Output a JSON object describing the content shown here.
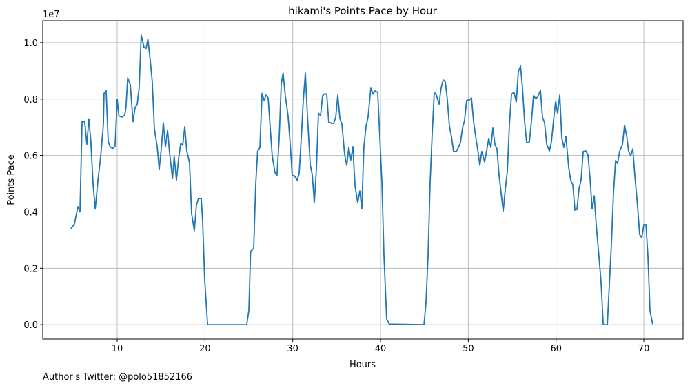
{
  "chart_data": {
    "type": "line",
    "title": "hikami's Points Pace by Hour",
    "xlabel": "Hours",
    "ylabel": "Points Pace",
    "y_offset_label": "1e7",
    "footnote": "Author's Twitter: @polo51852166",
    "x": [
      4.73,
      5.13,
      5.52,
      5.76,
      6.0,
      6.3,
      6.54,
      6.78,
      7.0,
      7.25,
      7.5,
      7.8,
      8.1,
      8.43,
      8.5,
      8.74,
      8.98,
      9.2,
      9.5,
      9.76,
      10.0,
      10.2,
      10.55,
      10.86,
      11.0,
      11.2,
      11.5,
      11.8,
      12.04,
      12.28,
      12.5,
      12.74,
      13.06,
      13.3,
      13.5,
      13.77,
      14.0,
      14.24,
      14.55,
      14.79,
      15.0,
      15.26,
      15.5,
      15.74,
      15.97,
      16.3,
      16.5,
      16.75,
      17.0,
      17.24,
      17.47,
      17.7,
      17.93,
      18.24,
      18.48,
      18.79,
      19.03,
      19.26,
      19.58,
      19.74,
      19.97,
      20.3,
      24.76,
      25.0,
      25.2,
      25.55,
      25.78,
      26.0,
      26.26,
      26.5,
      26.73,
      26.96,
      27.2,
      27.43,
      27.66,
      27.97,
      28.2,
      28.45,
      28.69,
      28.9,
      29.16,
      29.47,
      29.7,
      29.94,
      30.18,
      30.5,
      30.73,
      30.96,
      31.2,
      31.44,
      31.67,
      32.0,
      32.22,
      32.46,
      32.7,
      32.93,
      33.17,
      33.4,
      33.64,
      33.87,
      34.1,
      34.42,
      34.66,
      34.9,
      35.13,
      35.37,
      35.6,
      35.91,
      36.15,
      36.38,
      36.62,
      36.85,
      37.1,
      37.4,
      37.64,
      37.87,
      38.1,
      38.35,
      38.58,
      38.9,
      39.14,
      39.37,
      39.68,
      39.92,
      40.16,
      40.39,
      40.7,
      41.0,
      44.95,
      45.18,
      45.42,
      45.65,
      45.89,
      46.12,
      46.36,
      46.67,
      46.9,
      47.14,
      47.38,
      47.6,
      47.85,
      48.08,
      48.32,
      48.63,
      48.87,
      49.1,
      49.34,
      49.57,
      49.81,
      50.13,
      50.36,
      50.6,
      50.84,
      51.07,
      51.31,
      51.54,
      51.86,
      52.1,
      52.33,
      52.57,
      52.8,
      53.04,
      53.27,
      53.5,
      53.98,
      54.21,
      54.45,
      54.68,
      54.92,
      55.2,
      55.47,
      55.7,
      55.95,
      56.18,
      56.41,
      56.65,
      56.96,
      57.2,
      57.43,
      57.67,
      57.9,
      58.22,
      58.45,
      58.69,
      58.93,
      59.24,
      59.47,
      59.71,
      59.95,
      60.18,
      60.42,
      60.65,
      60.89,
      61.12,
      61.44,
      61.67,
      61.91,
      62.15,
      62.38,
      62.62,
      62.85,
      63.09,
      63.4,
      63.64,
      63.87,
      64.11,
      64.35,
      64.58,
      64.82,
      65.13,
      65.37,
      65.84,
      66.07,
      66.3,
      66.54,
      66.78,
      67.0,
      67.25,
      67.56,
      67.8,
      68.03,
      68.27,
      68.5,
      68.74,
      68.97,
      69.29,
      69.52,
      69.76,
      70.0,
      70.24,
      70.47,
      70.7,
      71.0
    ],
    "series": [
      {
        "name": "Points Pace",
        "color": "#1f77b4",
        "values": [
          0.34,
          0.357,
          0.418,
          0.4,
          0.72,
          0.72,
          0.64,
          0.73,
          0.65,
          0.5,
          0.41,
          0.51,
          0.59,
          0.71,
          0.82,
          0.83,
          0.65,
          0.63,
          0.625,
          0.633,
          0.8,
          0.74,
          0.736,
          0.743,
          0.77,
          0.875,
          0.85,
          0.72,
          0.77,
          0.78,
          0.84,
          1.027,
          0.983,
          0.98,
          1.012,
          0.936,
          0.86,
          0.694,
          0.633,
          0.552,
          0.616,
          0.716,
          0.63,
          0.69,
          0.609,
          0.518,
          0.597,
          0.513,
          0.589,
          0.643,
          0.636,
          0.702,
          0.616,
          0.575,
          0.394,
          0.333,
          0.425,
          0.447,
          0.447,
          0.364,
          0.159,
          0,
          0,
          0.05,
          0.26,
          0.27,
          0.496,
          0.616,
          0.628,
          0.82,
          0.795,
          0.814,
          0.804,
          0.7,
          0.6,
          0.54,
          0.528,
          0.658,
          0.853,
          0.892,
          0.81,
          0.74,
          0.645,
          0.53,
          0.528,
          0.513,
          0.535,
          0.655,
          0.795,
          0.892,
          0.743,
          0.565,
          0.533,
          0.433,
          0.555,
          0.75,
          0.741,
          0.812,
          0.819,
          0.817,
          0.719,
          0.714,
          0.714,
          0.736,
          0.814,
          0.731,
          0.711,
          0.604,
          0.565,
          0.628,
          0.584,
          0.631,
          0.491,
          0.433,
          0.474,
          0.411,
          0.628,
          0.704,
          0.736,
          0.841,
          0.817,
          0.829,
          0.824,
          0.665,
          0.501,
          0.247,
          0.02,
          0.002,
          0,
          0.078,
          0.247,
          0.504,
          0.68,
          0.824,
          0.814,
          0.782,
          0.839,
          0.868,
          0.861,
          0.802,
          0.704,
          0.667,
          0.614,
          0.614,
          0.628,
          0.645,
          0.697,
          0.724,
          0.795,
          0.797,
          0.804,
          0.721,
          0.667,
          0.621,
          0.565,
          0.614,
          0.577,
          0.619,
          0.66,
          0.628,
          0.697,
          0.638,
          0.623,
          0.53,
          0.403,
          0.479,
          0.545,
          0.707,
          0.817,
          0.824,
          0.79,
          0.897,
          0.917,
          0.836,
          0.721,
          0.645,
          0.648,
          0.724,
          0.812,
          0.802,
          0.807,
          0.831,
          0.736,
          0.716,
          0.64,
          0.616,
          0.648,
          0.724,
          0.792,
          0.75,
          0.814,
          0.663,
          0.628,
          0.667,
          0.557,
          0.511,
          0.496,
          0.406,
          0.408,
          0.484,
          0.513,
          0.614,
          0.616,
          0.601,
          0.518,
          0.41,
          0.457,
          0.352,
          0.266,
          0.149,
          0,
          0,
          0.144,
          0.284,
          0.467,
          0.582,
          0.572,
          0.616,
          0.638,
          0.707,
          0.672,
          0.614,
          0.599,
          0.623,
          0.53,
          0.418,
          0.32,
          0.308,
          0.355,
          0.355,
          0.24,
          0.049,
          0.002
        ]
      }
    ],
    "xlim": [
      1.52,
      74.47
    ],
    "ylim": [
      -0.051,
      1.078
    ],
    "xticks": [
      10,
      20,
      30,
      40,
      50,
      60,
      70
    ],
    "yticks": [
      {
        "value": 0,
        "label": "0.0"
      },
      0.2,
      0.4,
      0.6,
      0.8,
      {
        "value": 1,
        "label": "1.0"
      }
    ],
    "grid": true
  }
}
